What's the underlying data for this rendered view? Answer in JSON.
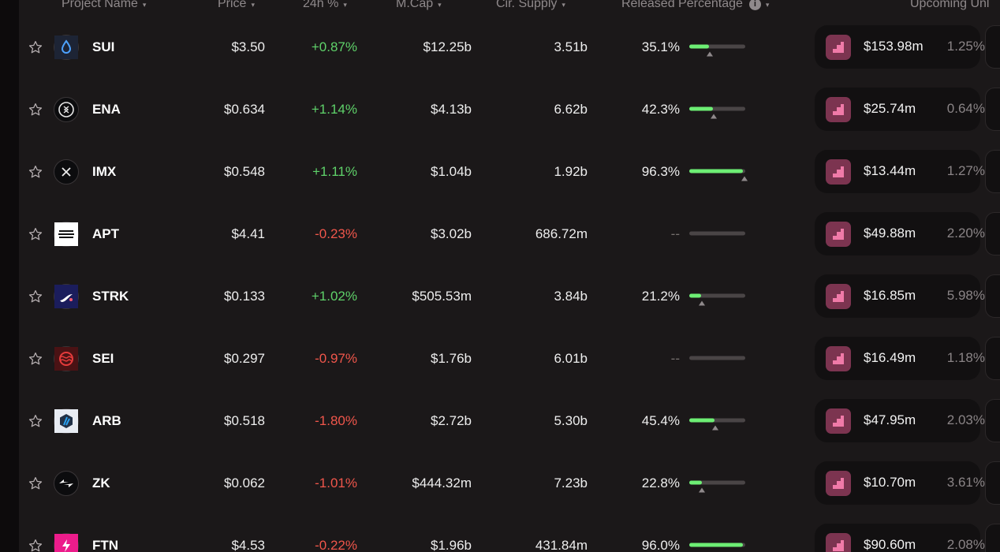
{
  "columns": {
    "project": "Project Name",
    "price": "Price",
    "change": "24h %",
    "mcap": "M.Cap",
    "supply": "Cir. Supply",
    "released": "Released Percentage",
    "info_glyph": "i",
    "upcoming": "Upcoming Unl"
  },
  "sort_glyph": "▾",
  "colors": {
    "positive": "#5fd26a",
    "negative": "#f0564b",
    "progress": "#6dee74",
    "unlock_icon_bg": "#7c3450",
    "unlock_icon_fg": "#f07aa8"
  },
  "rows": [
    {
      "symbol": "SUI",
      "icon": "sui-icon",
      "price": "$3.50",
      "change": "+0.87%",
      "trend": "pos",
      "mcap": "$12.25b",
      "supply": "3.51b",
      "released": "35.1%",
      "released_value": 0.351,
      "marker_value": 0.36,
      "unlock_value": "$153.98m",
      "unlock_pct": "1.25%"
    },
    {
      "symbol": "ENA",
      "icon": "ethena-icon",
      "price": "$0.634",
      "change": "+1.14%",
      "trend": "pos",
      "mcap": "$4.13b",
      "supply": "6.62b",
      "released": "42.3%",
      "released_value": 0.423,
      "marker_value": 0.44,
      "unlock_value": "$25.74m",
      "unlock_pct": "0.64%"
    },
    {
      "symbol": "IMX",
      "icon": "immutable-icon",
      "price": "$0.548",
      "change": "+1.11%",
      "trend": "pos",
      "mcap": "$1.04b",
      "supply": "1.92b",
      "released": "96.3%",
      "released_value": 0.963,
      "marker_value": 0.98,
      "unlock_value": "$13.44m",
      "unlock_pct": "1.27%"
    },
    {
      "symbol": "APT",
      "icon": "aptos-icon",
      "price": "$4.41",
      "change": "-0.23%",
      "trend": "neg",
      "mcap": "$3.02b",
      "supply": "686.72m",
      "released": "--",
      "released_value": 0,
      "marker_value": null,
      "unlock_value": "$49.88m",
      "unlock_pct": "2.20%"
    },
    {
      "symbol": "STRK",
      "icon": "starknet-icon",
      "price": "$0.133",
      "change": "+1.02%",
      "trend": "pos",
      "mcap": "$505.53m",
      "supply": "3.84b",
      "released": "21.2%",
      "released_value": 0.212,
      "marker_value": 0.22,
      "unlock_value": "$16.85m",
      "unlock_pct": "5.98%"
    },
    {
      "symbol": "SEI",
      "icon": "sei-icon",
      "price": "$0.297",
      "change": "-0.97%",
      "trend": "neg",
      "mcap": "$1.76b",
      "supply": "6.01b",
      "released": "--",
      "released_value": 0,
      "marker_value": null,
      "unlock_value": "$16.49m",
      "unlock_pct": "1.18%"
    },
    {
      "symbol": "ARB",
      "icon": "arbitrum-icon",
      "price": "$0.518",
      "change": "-1.80%",
      "trend": "neg",
      "mcap": "$2.72b",
      "supply": "5.30b",
      "released": "45.4%",
      "released_value": 0.454,
      "marker_value": 0.47,
      "unlock_value": "$47.95m",
      "unlock_pct": "2.03%"
    },
    {
      "symbol": "ZK",
      "icon": "zksync-icon",
      "price": "$0.062",
      "change": "-1.01%",
      "trend": "neg",
      "mcap": "$444.32m",
      "supply": "7.23b",
      "released": "22.8%",
      "released_value": 0.228,
      "marker_value": 0.23,
      "unlock_value": "$10.70m",
      "unlock_pct": "3.61%"
    },
    {
      "symbol": "FTN",
      "icon": "fasttoken-icon",
      "price": "$4.53",
      "change": "-0.22%",
      "trend": "neg",
      "mcap": "$1.96b",
      "supply": "431.84m",
      "released": "96.0%",
      "released_value": 0.96,
      "marker_value": null,
      "unlock_value": "$90.60m",
      "unlock_pct": "2.08%"
    }
  ]
}
